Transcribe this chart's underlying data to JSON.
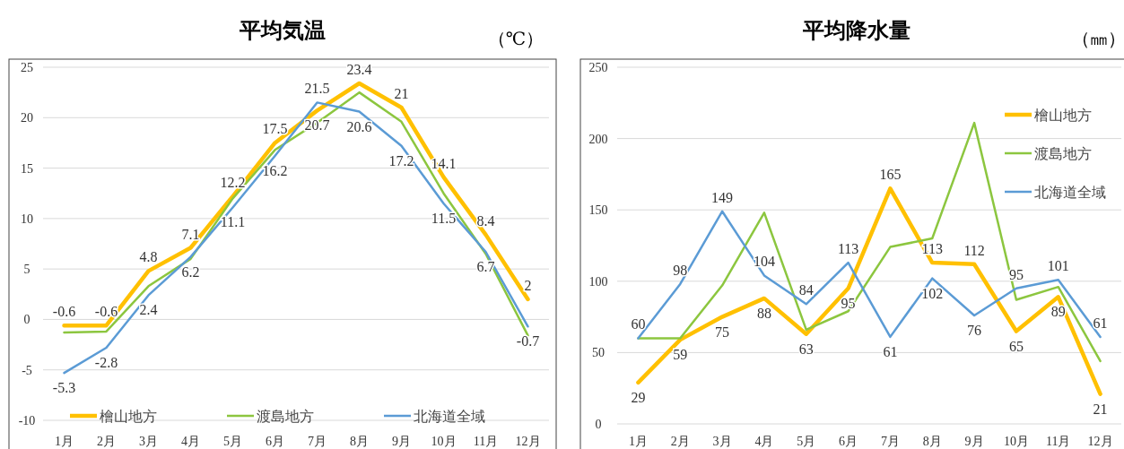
{
  "chart_data": [
    {
      "type": "line",
      "title": "平均気温",
      "ylabel": "（℃）",
      "categories": [
        "1月",
        "2月",
        "3月",
        "4月",
        "5月",
        "6月",
        "7月",
        "8月",
        "9月",
        "10月",
        "11月",
        "12月"
      ],
      "ylim": [
        -10,
        25
      ],
      "yticks": [
        -10,
        -5,
        0,
        5,
        10,
        15,
        20,
        25
      ],
      "grid": "y",
      "legend": "bottom",
      "marker": "none",
      "series": [
        {
          "name": "檜山地方",
          "color": "#ffc000",
          "values": [
            -0.6,
            -0.6,
            4.8,
            7.1,
            12.2,
            17.5,
            20.7,
            23.4,
            21,
            14.1,
            8.4,
            2
          ],
          "value_labels": [
            "-0.6",
            "-0.6",
            "4.8",
            "7.1",
            "12.2",
            "17.5",
            "20.7",
            "23.4",
            "21",
            "14.1",
            "8.4",
            "2"
          ]
        },
        {
          "name": "渡島地方",
          "color": "#8cc63f",
          "values": [
            -1.3,
            -1.2,
            3.3,
            6.0,
            12.0,
            16.8,
            19.5,
            22.5,
            19.6,
            12.5,
            6.5,
            -1.6
          ]
        },
        {
          "name": "北海道全域",
          "color": "#5b9bd5",
          "values": [
            -5.3,
            -2.8,
            2.4,
            6.2,
            11.1,
            16.2,
            21.5,
            20.6,
            17.2,
            11.5,
            6.7,
            -0.7
          ],
          "value_labels": [
            "-5.3",
            "-2.8",
            "2.4",
            "6.2",
            "11.1",
            "16.2",
            "21.5",
            "20.6",
            "17.2",
            "11.5",
            "6.7",
            "-0.7"
          ]
        }
      ]
    },
    {
      "type": "line",
      "title": "平均降水量",
      "ylabel": "（㎜）",
      "categories": [
        "1月",
        "2月",
        "3月",
        "4月",
        "5月",
        "6月",
        "7月",
        "8月",
        "9月",
        "10月",
        "11月",
        "12月"
      ],
      "ylim": [
        0,
        250
      ],
      "yticks": [
        0,
        50,
        100,
        150,
        200,
        250
      ],
      "grid": "y",
      "legend": "top right",
      "marker": "none",
      "series": [
        {
          "name": "檜山地方",
          "color": "#ffc000",
          "values": [
            29,
            59,
            75,
            88,
            63,
            95,
            165,
            113,
            112,
            65,
            89,
            21
          ],
          "value_labels": [
            "29",
            "59",
            "75",
            "88",
            "63",
            "95",
            "165",
            "113",
            "112",
            "65",
            "89",
            "21"
          ]
        },
        {
          "name": "渡島地方",
          "color": "#8cc63f",
          "values": [
            60,
            60,
            97,
            148,
            66,
            79,
            124,
            130,
            211,
            87,
            96,
            44
          ]
        },
        {
          "name": "北海道全域",
          "color": "#5b9bd5",
          "values": [
            60,
            98,
            149,
            104,
            84,
            113,
            61,
            102,
            76,
            95,
            101,
            61
          ],
          "value_labels": [
            "60",
            "98",
            "149",
            "104",
            "84",
            "113",
            "61",
            "102",
            "76",
            "95",
            "101",
            "61"
          ]
        }
      ]
    }
  ]
}
